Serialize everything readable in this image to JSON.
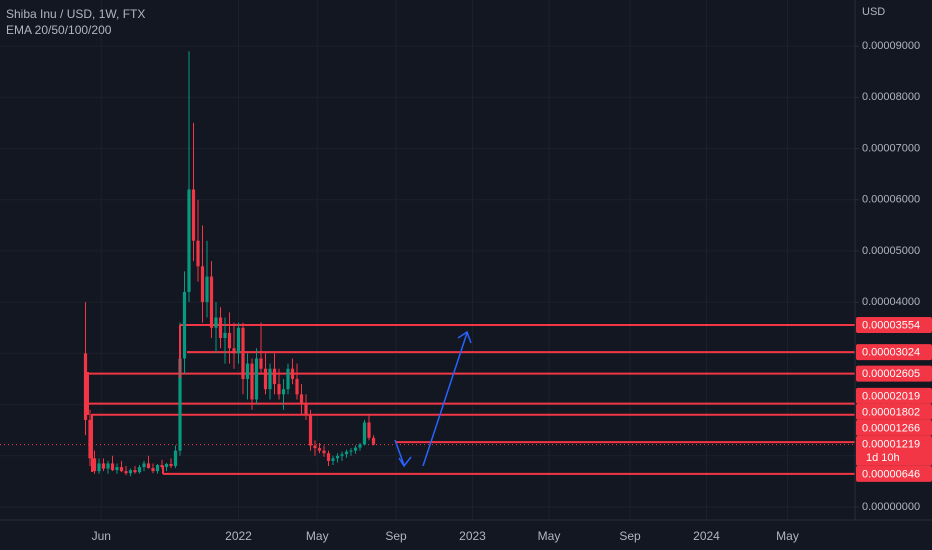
{
  "chart_data": {
    "type": "candlestick",
    "title": "Shiba Inu / USD, 1W, FTX",
    "subtitle": "EMA 20/50/100/200",
    "y_axis_label": "USD",
    "up_color": "#089981",
    "down_color": "#f23645",
    "level_color": "#f23645",
    "grid": true,
    "open": [
      3e-05,
      1.7e-05,
      9.5e-06,
      7e-06,
      8.5e-06,
      7.5e-06,
      8.5e-06,
      7.2e-06,
      7.8e-06,
      7e-06,
      6.6e-06,
      7.2e-06,
      6.8e-06,
      7.8e-06,
      8.5e-06,
      7.6e-06,
      7e-06,
      8.2e-06,
      7.8e-06,
      8.4e-06,
      8e-06,
      1.1e-05,
      2.9e-05,
      4.2e-05,
      6.2e-05,
      5.2e-05,
      4.7e-05,
      4e-05,
      4.5e-05,
      3.5e-05,
      3.7e-05,
      3.3e-05,
      3.4e-05,
      3.1e-05,
      3e-05,
      3.5e-05,
      2.5e-05,
      2.8e-05,
      2.1e-05,
      2.9e-05,
      2.7e-05,
      2.3e-05,
      2.7e-05,
      2.4e-05,
      2.2e-05,
      2.3e-05,
      2.7e-05,
      2.5e-05,
      2.2e-05,
      2e-05,
      1.8e-05,
      1.2e-05,
      1.15e-05,
      1.1e-05,
      1.05e-05,
      9e-06,
      9.5e-06,
      1e-05,
      1.03e-05,
      1.08e-05,
      1.1e-05,
      1.16e-05,
      1.22e-05,
      1.65e-05,
      1.35e-05
    ],
    "high": [
      4e-05,
      1.9e-05,
      1.1e-05,
      9.5e-06,
      9.5e-06,
      9e-06,
      1e-05,
      8.5e-06,
      9e-06,
      8e-06,
      7.5e-06,
      8e-06,
      8.2e-06,
      9e-06,
      1e-05,
      8.5e-06,
      8.4e-06,
      9.2e-06,
      8.6e-06,
      9.5e-06,
      1.2e-05,
      3.6e-05,
      4.6e-05,
      8.9e-05,
      7.5e-05,
      6e-05,
      5.5e-05,
      5.2e-05,
      4.8e-05,
      4e-05,
      3.9e-05,
      3.7e-05,
      3.8e-05,
      3.6e-05,
      3.6e-05,
      3.6e-05,
      3e-05,
      2.9e-05,
      3.1e-05,
      3.6e-05,
      3e-05,
      2.8e-05,
      3e-05,
      2.7e-05,
      2.5e-05,
      2.8e-05,
      2.9e-05,
      2.8e-05,
      2.4e-05,
      2.2e-05,
      1.9e-05,
      1.3e-05,
      1.25e-05,
      1.2e-05,
      1.1e-05,
      1e-05,
      1.05e-05,
      1.08e-05,
      1.12e-05,
      1.15e-05,
      1.2e-05,
      1.25e-05,
      1.7e-05,
      1.8e-05,
      1.4e-05
    ],
    "low": [
      1.4e-05,
      8e-06,
      6.5e-06,
      6.5e-06,
      7e-06,
      6.5e-06,
      7e-06,
      6.5e-06,
      6.8e-06,
      6.2e-06,
      6e-06,
      6.5e-06,
      6.5e-06,
      7e-06,
      7.5e-06,
      6.6e-06,
      6.5e-06,
      7.5e-06,
      7e-06,
      7.6e-06,
      7.6e-06,
      1e-05,
      2.6e-05,
      4e-05,
      4.8e-05,
      4.4e-05,
      3.6e-05,
      3.7e-05,
      3.3e-05,
      3e-05,
      3.1e-05,
      2.8e-05,
      2.8e-05,
      2.7e-05,
      2.8e-05,
      2.2e-05,
      2.1e-05,
      1.9e-05,
      2e-05,
      2.6e-05,
      2.2e-05,
      2.1e-05,
      2.2e-05,
      2.1e-05,
      1.9e-05,
      2.2e-05,
      2.4e-05,
      2.1e-05,
      1.8e-05,
      1.7e-05,
      1.1e-05,
      1e-05,
      1.05e-05,
      9.8e-06,
      8e-06,
      8.2e-06,
      8.7e-06,
      9e-06,
      9.6e-06,
      1e-05,
      1.04e-05,
      1.1e-05,
      1.2e-05,
      1.3e-05,
      1.2e-05
    ],
    "close": [
      1.7e-05,
      9.5e-06,
      7e-06,
      8.5e-06,
      7.5e-06,
      8.5e-06,
      7.2e-06,
      7.8e-06,
      7e-06,
      6.6e-06,
      7.2e-06,
      6.8e-06,
      7.8e-06,
      8.5e-06,
      7.6e-06,
      7e-06,
      8.2e-06,
      7.8e-06,
      8.4e-06,
      8e-06,
      1.1e-05,
      2.9e-05,
      4.2e-05,
      6.2e-05,
      5.2e-05,
      4.7e-05,
      4e-05,
      4.5e-05,
      3.5e-05,
      3.7e-05,
      3.3e-05,
      3.4e-05,
      3.1e-05,
      3e-05,
      3.5e-05,
      2.5e-05,
      2.8e-05,
      2.1e-05,
      2.9e-05,
      2.7e-05,
      2.3e-05,
      2.7e-05,
      2.4e-05,
      2.2e-05,
      2.3e-05,
      2.7e-05,
      2.5e-05,
      2.2e-05,
      2e-05,
      1.8e-05,
      1.2e-05,
      1.15e-05,
      1.1e-05,
      1.05e-05,
      9e-06,
      9.5e-06,
      1e-05,
      1.03e-05,
      1.08e-05,
      1.1e-05,
      1.16e-05,
      1.22e-05,
      1.65e-05,
      1.35e-05,
      1.219e-05
    ],
    "levels": {
      "values": [
        3.554e-05,
        3.024e-05,
        2.605e-05,
        2.019e-05,
        1.802e-05,
        1.266e-05,
        1.219e-05,
        6.46e-06
      ],
      "value_labels": [
        "0.00003554",
        "0.00003024",
        "0.00002605",
        "0.00002019",
        "0.00001802",
        "0.00001266",
        "0.00001219",
        "0.00000646"
      ]
    },
    "countdown": "1d 10h",
    "ylim": [
      -2.54e-06,
      9.9e-05
    ],
    "yticks": [
      {
        "value": 0,
        "label": "0.00000000"
      },
      {
        "value": 1e-05,
        "label": "0.00001000"
      },
      {
        "value": 2e-05,
        "label": "0.00002000"
      },
      {
        "value": 3e-05,
        "label": "0.00003000"
      },
      {
        "value": 4e-05,
        "label": "0.00004000"
      },
      {
        "value": 5e-05,
        "label": "0.00005000"
      },
      {
        "value": 6e-05,
        "label": "0.00006000"
      },
      {
        "value": 7e-05,
        "label": "0.00007000"
      },
      {
        "value": 8e-05,
        "label": "0.00008000"
      },
      {
        "value": 9e-05,
        "label": "0.00009000"
      }
    ],
    "xlim": [
      -19,
      171
    ],
    "xticks": [
      {
        "value": 3.5,
        "label": "Jun"
      },
      {
        "value": 34,
        "label": "2022"
      },
      {
        "value": 51.5,
        "label": "May"
      },
      {
        "value": 69,
        "label": "Sep"
      },
      {
        "value": 86,
        "label": "2023"
      },
      {
        "value": 103,
        "label": "May"
      },
      {
        "value": 121,
        "label": "Sep"
      },
      {
        "value": 138,
        "label": "2024"
      },
      {
        "value": 156,
        "label": "May"
      }
    ]
  }
}
